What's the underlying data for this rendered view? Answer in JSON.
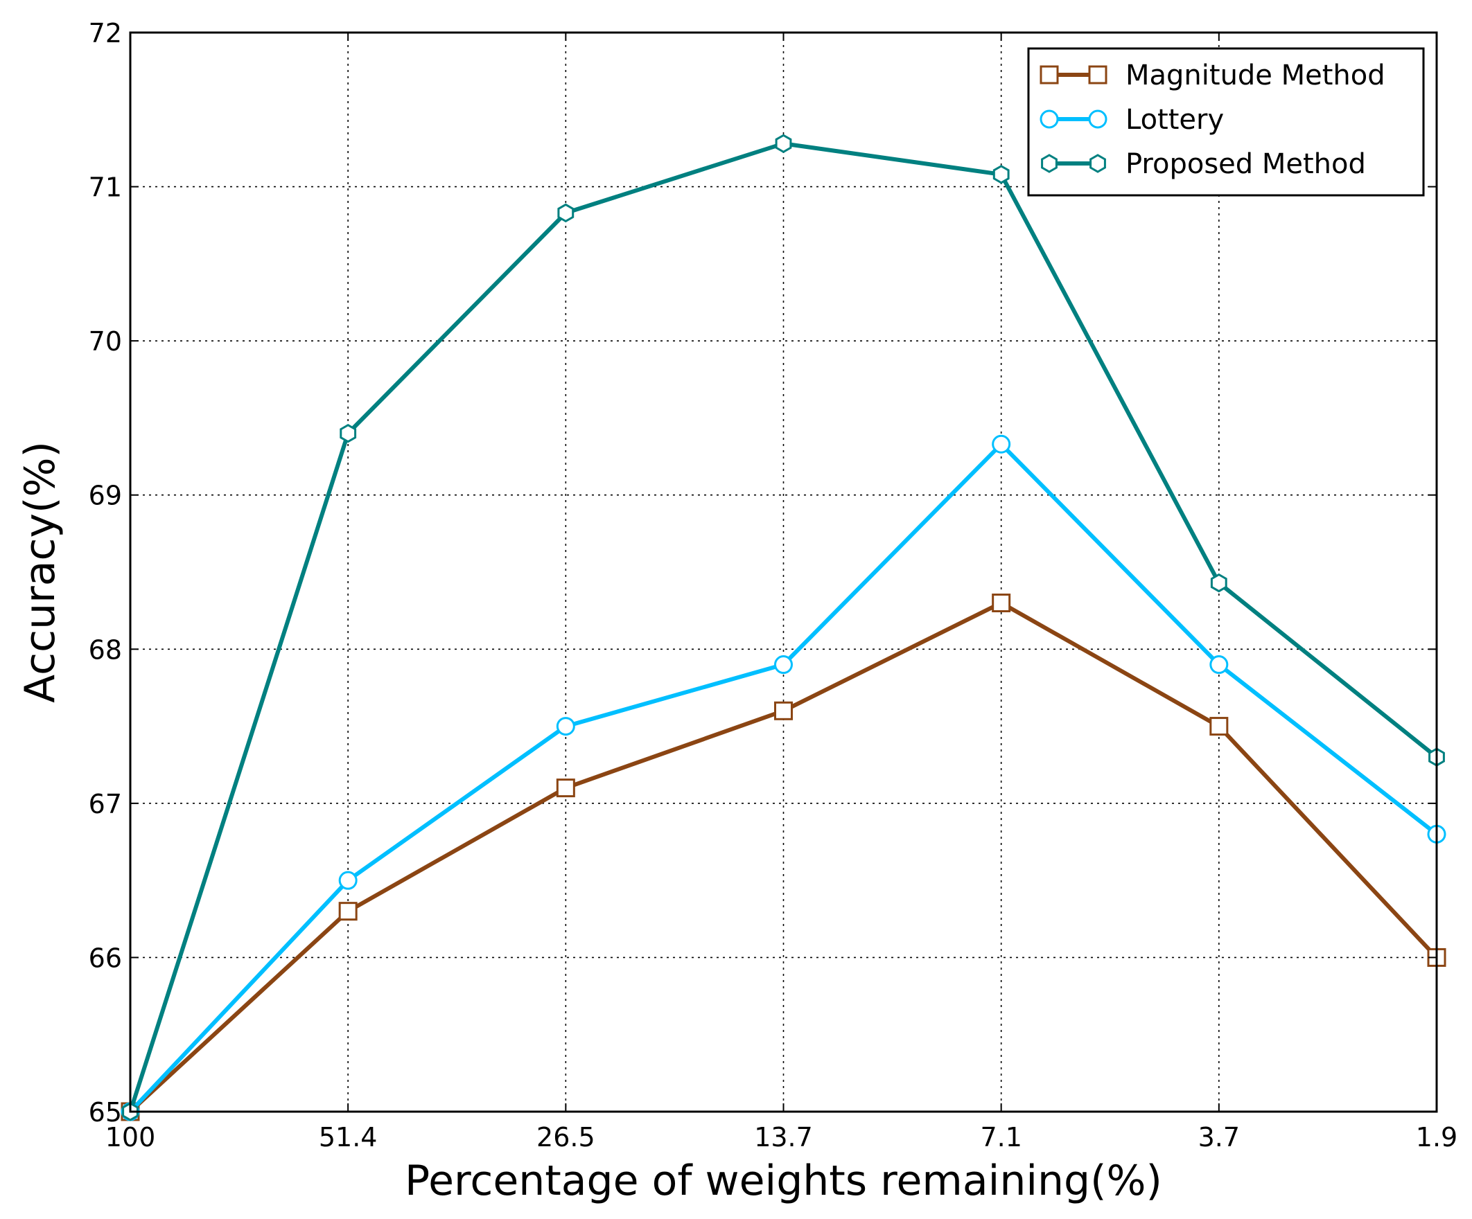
{
  "chart_data": {
    "type": "line",
    "title": "",
    "xlabel": "Percentage of weights remaining(%)",
    "ylabel": "Accuracy(%)",
    "categories": [
      "100",
      "51.4",
      "26.5",
      "13.7",
      "7.1",
      "3.7",
      "1.9"
    ],
    "ylim": [
      65,
      72
    ],
    "yticks": [
      "65",
      "66",
      "67",
      "68",
      "69",
      "70",
      "71",
      "72"
    ],
    "grid": true,
    "legend_position": "top-right",
    "series": [
      {
        "name": "Magnitude Method",
        "color": "#8B4513",
        "marker": "square",
        "values": [
          65.0,
          66.3,
          67.1,
          67.6,
          68.3,
          67.5,
          66.0
        ]
      },
      {
        "name": "Lottery",
        "color": "#00BFFF",
        "marker": "circle",
        "values": [
          65.0,
          66.5,
          67.5,
          67.9,
          69.33,
          67.9,
          66.8
        ]
      },
      {
        "name": "Proposed Method",
        "color": "#008080",
        "marker": "hexagon",
        "values": [
          65.0,
          69.4,
          70.83,
          71.28,
          71.08,
          68.43,
          67.3
        ]
      }
    ]
  }
}
